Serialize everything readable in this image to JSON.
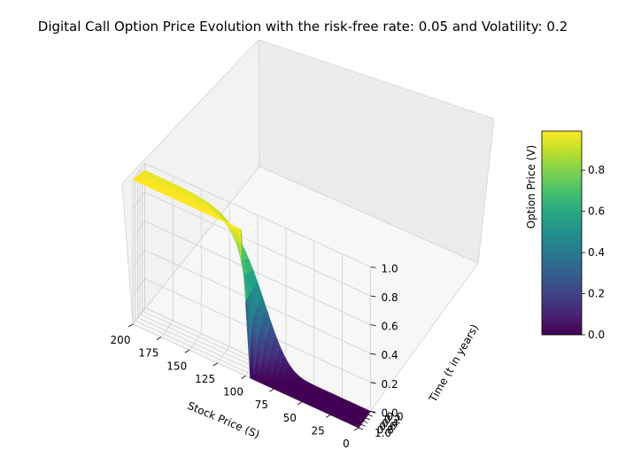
{
  "chart_data": {
    "type": "surface3d",
    "title": "Digital Call Option Price Evolution with the risk-free rate: 0.05 and Volatility: 0.2",
    "xlabel": "Stock Price (S)",
    "ylabel": "Time (t in years)",
    "zlabel": "Option Price (V)",
    "x_range": [
      0,
      200
    ],
    "y_range": [
      0,
      1
    ],
    "z_range": [
      0,
      1
    ],
    "x_ticks": [
      "200",
      "175",
      "150",
      "125",
      "100",
      "75",
      "50",
      "25",
      "0"
    ],
    "y_ticks": [
      "0.0",
      "0.2",
      "0.4",
      "0.6",
      "0.8",
      "1.0"
    ],
    "z_ticks": [
      "0.0",
      "0.2",
      "0.4",
      "0.6",
      "0.8",
      "1.0"
    ],
    "colorbar_ticks": [
      "0.0",
      "0.2",
      "0.4",
      "0.6",
      "0.8"
    ],
    "colorbar_range": [
      0,
      0.99
    ],
    "colormap": "viridis",
    "grid": true,
    "model": {
      "strike": 100,
      "maturity": 1,
      "risk_free_rate": 0.05,
      "volatility": 0.2,
      "payoff": "cash-or-nothing call, payoff 1"
    }
  }
}
